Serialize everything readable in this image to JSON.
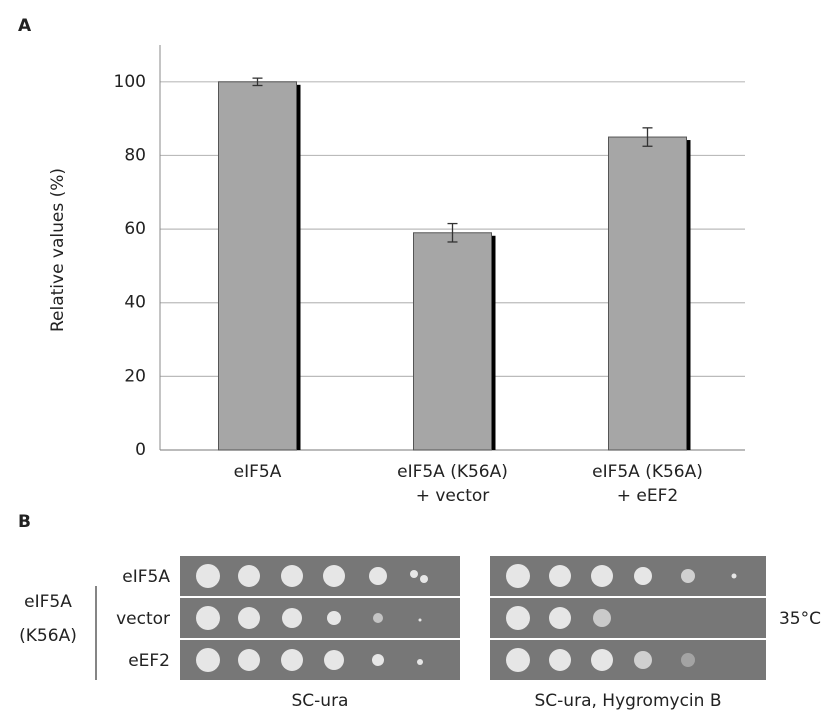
{
  "chart_data": {
    "type": "bar",
    "panel": "A",
    "y_label": "Relative values (%)",
    "categories": [
      [
        "eIF5A"
      ],
      [
        "eIF5A (K56A)",
        "+ vector"
      ],
      [
        "eIF5A (K56A)",
        "+ eEF2"
      ]
    ],
    "values": [
      100,
      59,
      85
    ],
    "errors": [
      1,
      2.5,
      2.5
    ],
    "color": "#a6a6a6",
    "ylim": [
      0,
      110
    ],
    "yticks": [
      0,
      20,
      40,
      60,
      80,
      100
    ],
    "grid": true
  },
  "panel_b": {
    "label": "B",
    "rows": [
      "eIF5A",
      "vector",
      "eEF2"
    ],
    "group_label": [
      "eIF5A",
      "(K56A)"
    ],
    "plates": [
      "SC-ura",
      "SC-ura, Hygromycin B"
    ],
    "temperature": "35°C"
  }
}
